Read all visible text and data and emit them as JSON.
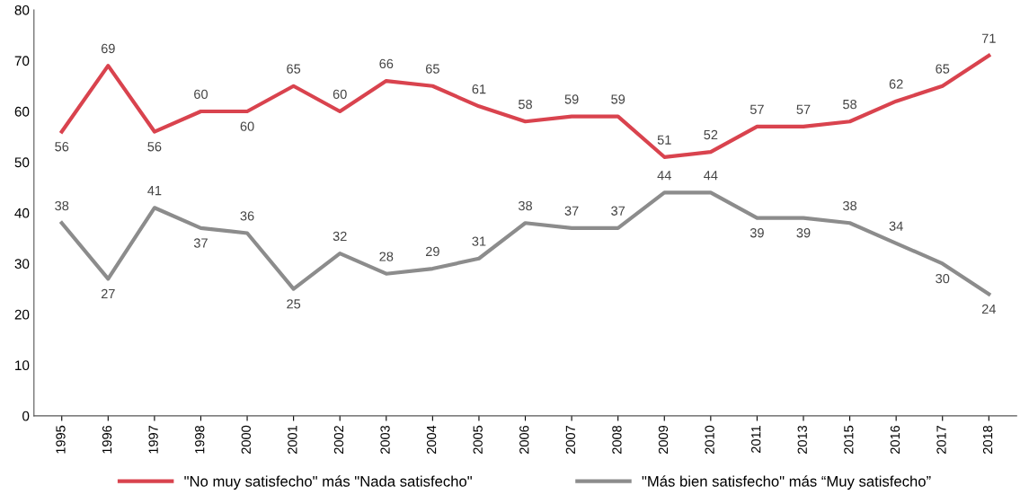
{
  "chart_data": {
    "type": "line",
    "categories": [
      "1995",
      "1996",
      "1997",
      "1998",
      "2000",
      "2001",
      "2002",
      "2003",
      "2004",
      "2005",
      "2006",
      "2007",
      "2008",
      "2009",
      "2010",
      "2011",
      "2013",
      "2015",
      "2016",
      "2017",
      "2018"
    ],
    "series": [
      {
        "name": "\"No muy satisfecho\" más \"Nada satisfecho\"",
        "color": "#d9434e",
        "values": [
          56,
          69,
          56,
          60,
          60,
          65,
          60,
          66,
          65,
          61,
          58,
          59,
          59,
          51,
          52,
          57,
          57,
          58,
          62,
          65,
          71
        ]
      },
      {
        "name": "\"Más bien satisfecho\" más “Muy satisfecho”",
        "color": "#8c8c8c",
        "values": [
          38,
          27,
          41,
          37,
          36,
          25,
          32,
          28,
          29,
          31,
          38,
          37,
          37,
          44,
          44,
          39,
          39,
          38,
          34,
          30,
          24
        ]
      }
    ],
    "ylim": [
      0,
      80
    ],
    "yticks": [
      0,
      10,
      20,
      30,
      40,
      50,
      60,
      70,
      80
    ],
    "grid": false,
    "legend": "bottom",
    "data_labels": true,
    "marker": "none",
    "line_style": "solid"
  }
}
